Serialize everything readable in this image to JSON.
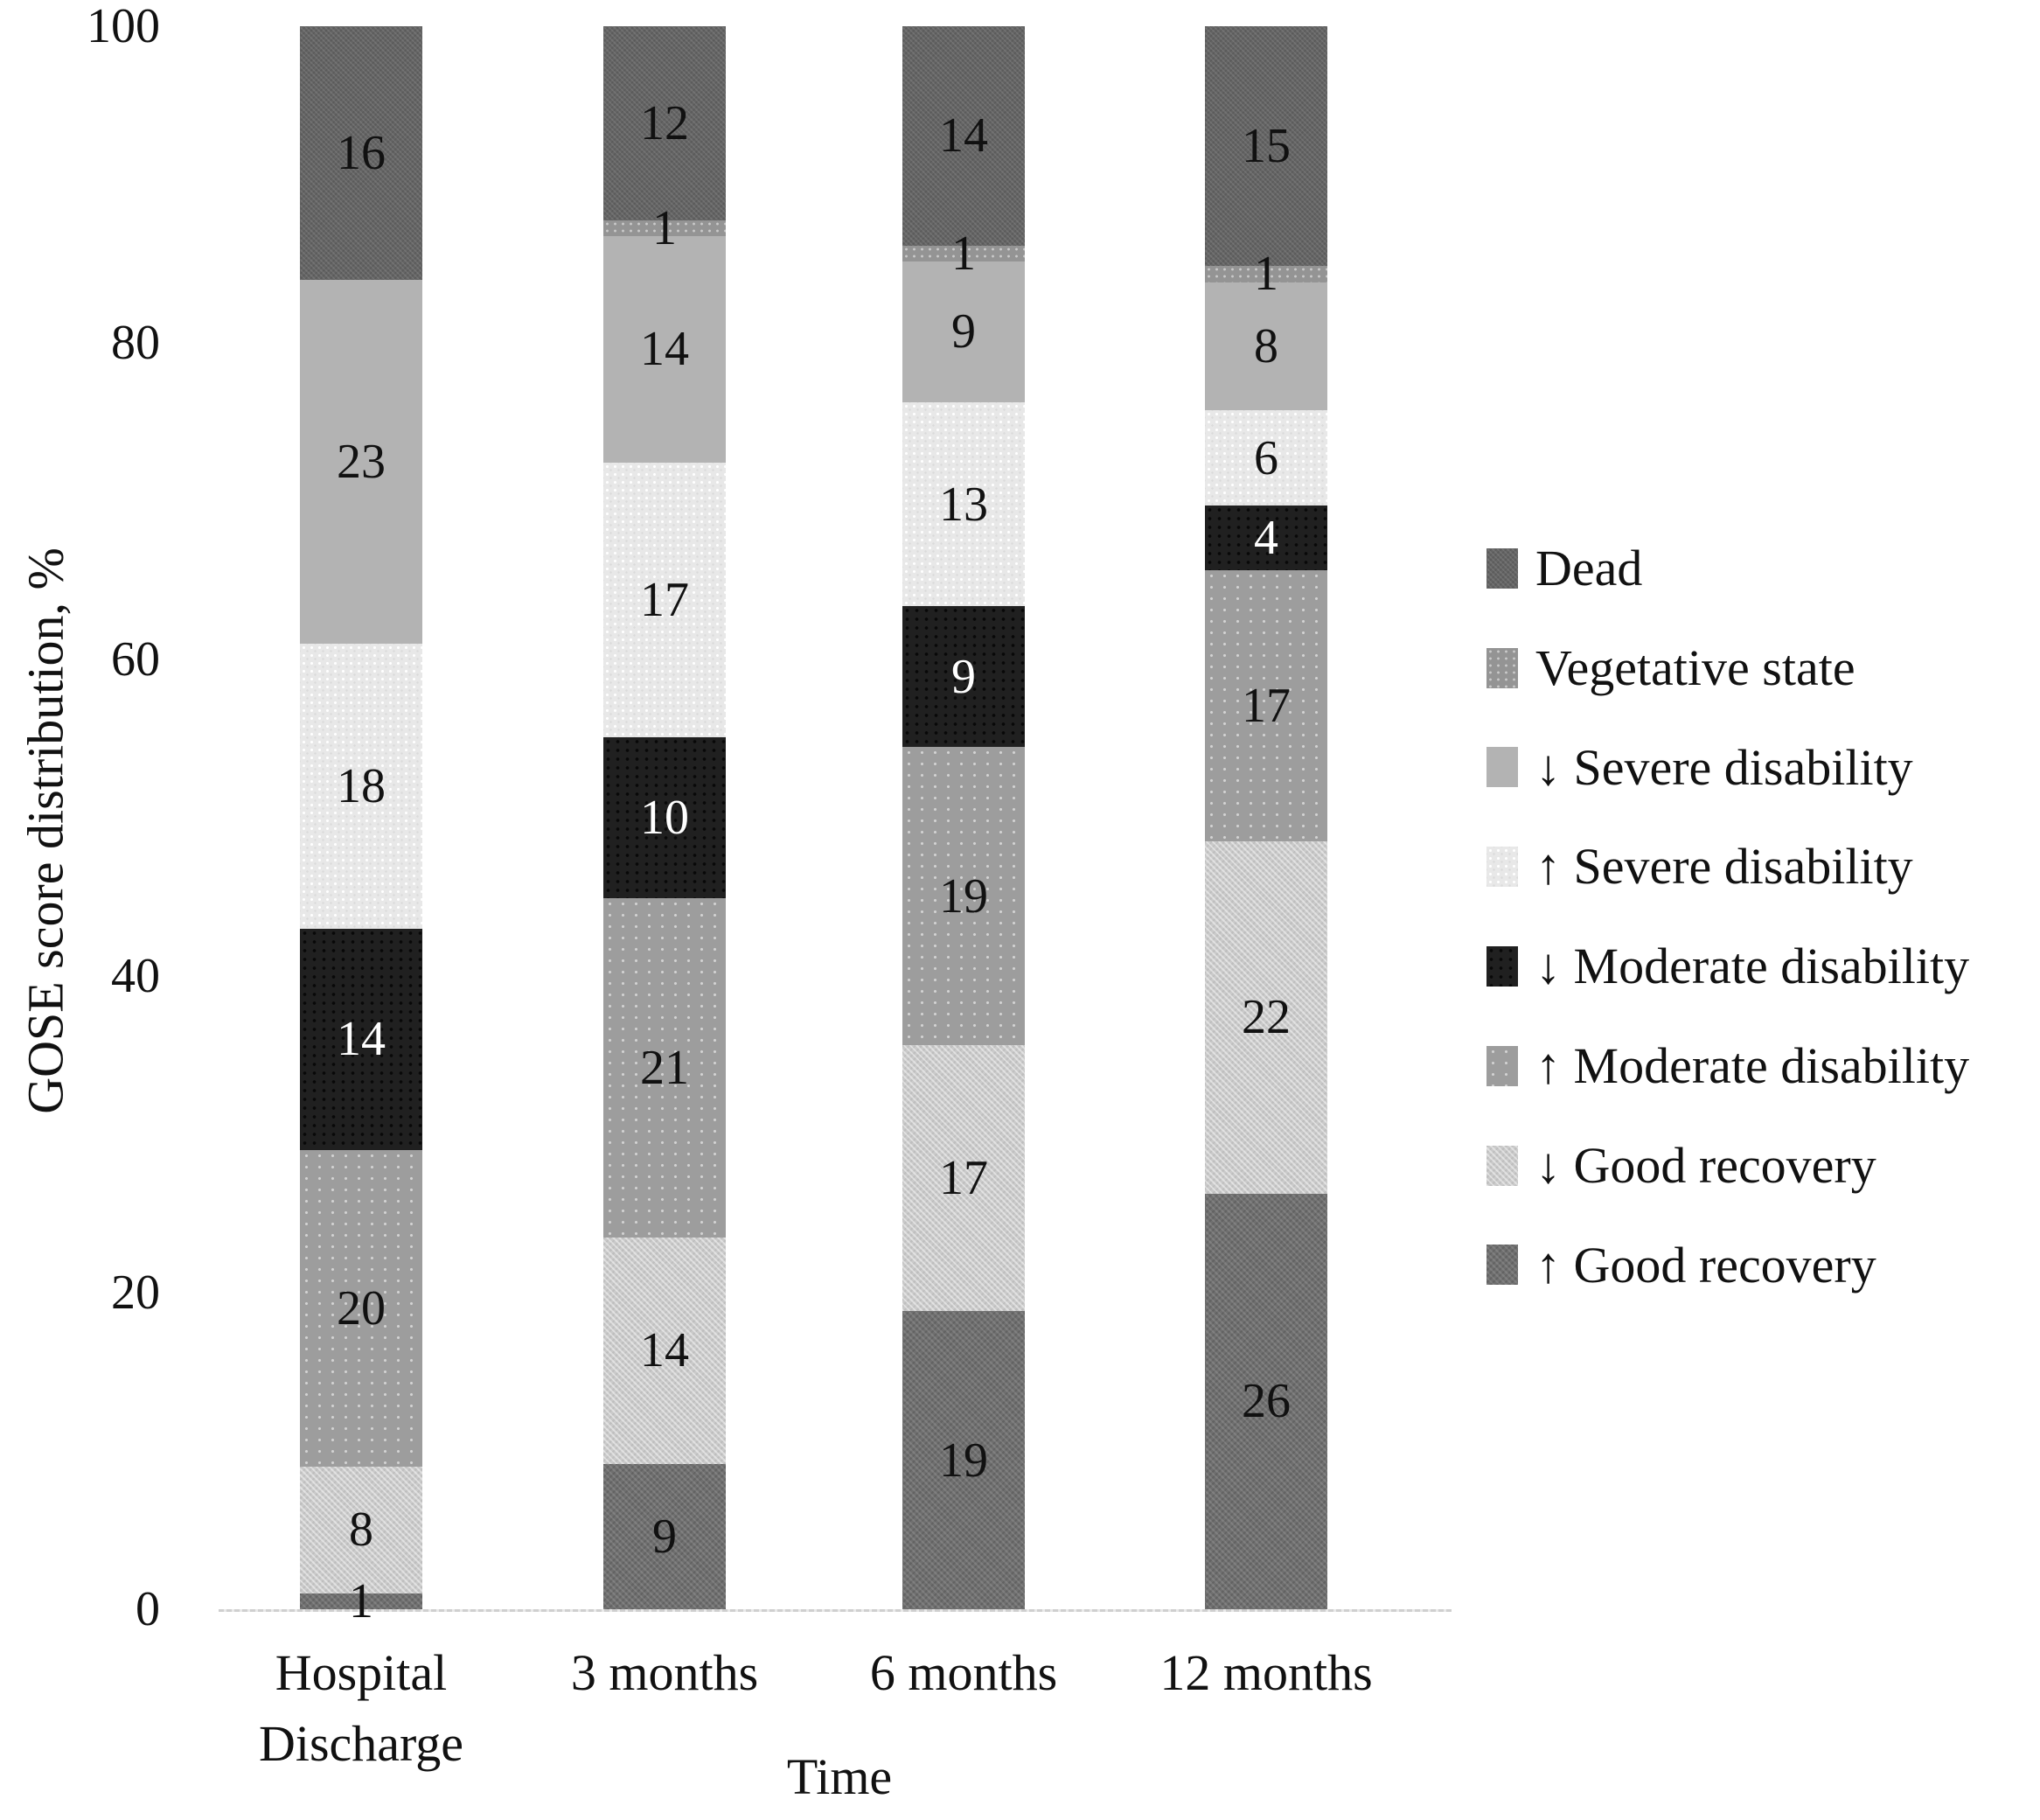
{
  "chart_data": {
    "type": "bar",
    "stacked": true,
    "percent_scale": true,
    "title": "",
    "xlabel": "Time",
    "ylabel": "GOSE score distribution, %",
    "ylim": [
      0,
      100
    ],
    "yticks": [
      0,
      20,
      40,
      60,
      80,
      100
    ],
    "grid": false,
    "legend_position": "right",
    "categories": [
      "Hospital Discharge",
      "3 months",
      "6 months",
      "12 months"
    ],
    "series": [
      {
        "key": "up-good",
        "name": "↑ Good recovery",
        "values": [
          1,
          9,
          19,
          26
        ]
      },
      {
        "key": "down-good",
        "name": "↓ Good recovery",
        "values": [
          8,
          14,
          17,
          22
        ]
      },
      {
        "key": "up-moderate",
        "name": "↑ Moderate disability",
        "values": [
          20,
          21,
          19,
          17
        ]
      },
      {
        "key": "down-moderate",
        "name": "↓ Moderate disability",
        "values": [
          14,
          10,
          9,
          4
        ]
      },
      {
        "key": "up-severe",
        "name": "↑ Severe disability",
        "values": [
          18,
          17,
          13,
          6
        ]
      },
      {
        "key": "down-severe",
        "name": "↓ Severe disability",
        "values": [
          23,
          14,
          9,
          8
        ]
      },
      {
        "key": "vegetative",
        "name": "Vegetative state",
        "values": [
          0,
          1,
          1,
          1
        ]
      },
      {
        "key": "dead",
        "name": "Dead",
        "values": [
          16,
          12,
          14,
          15
        ]
      }
    ],
    "legend": [
      {
        "series": "dead",
        "label": "Dead"
      },
      {
        "series": "vegetative",
        "label": "Vegetative state"
      },
      {
        "series": "down-severe",
        "label": "↓ Severe disability"
      },
      {
        "series": "up-severe",
        "label": "↑ Severe disability"
      },
      {
        "series": "down-moderate",
        "label": "↓ Moderate disability"
      },
      {
        "series": "up-moderate",
        "label": "↑ Moderate disability"
      },
      {
        "series": "down-good",
        "label": "↓ Good recovery"
      },
      {
        "series": "up-good",
        "label": "↑ Good recovery"
      }
    ],
    "colors": {
      "dead": "#646464",
      "vegetative": "#949494",
      "down-severe": "#b3b3b3",
      "up-severe": "#e8e8e8",
      "down-moderate": "#202020",
      "up-moderate": "#9d9d9d",
      "down-good": "#cacaca",
      "up-good": "#6f6f6f"
    }
  }
}
